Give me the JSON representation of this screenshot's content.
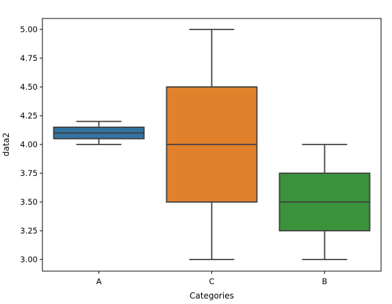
{
  "chart_data": {
    "type": "box",
    "xlabel": "Categories",
    "ylabel": "data2",
    "ylim": [
      2.9,
      5.1
    ],
    "yticks": [
      "3.00",
      "3.25",
      "3.50",
      "3.75",
      "4.00",
      "4.25",
      "4.50",
      "4.75",
      "5.00"
    ],
    "categories": [
      "A",
      "C",
      "B"
    ],
    "boxes": [
      {
        "category": "A",
        "whisker_low": 4.0,
        "q1": 4.05,
        "median": 4.1,
        "q3": 4.15,
        "whisker_high": 4.2,
        "color": "#3274a1"
      },
      {
        "category": "C",
        "whisker_low": 3.0,
        "q1": 3.5,
        "median": 4.0,
        "q3": 4.5,
        "whisker_high": 5.0,
        "color": "#e1812c"
      },
      {
        "category": "B",
        "whisker_low": 3.0,
        "q1": 3.25,
        "median": 3.5,
        "q3": 3.75,
        "whisker_high": 4.0,
        "color": "#3a923a"
      }
    ],
    "line_color": "#3f3f3f",
    "grid": false,
    "legend": "none"
  }
}
